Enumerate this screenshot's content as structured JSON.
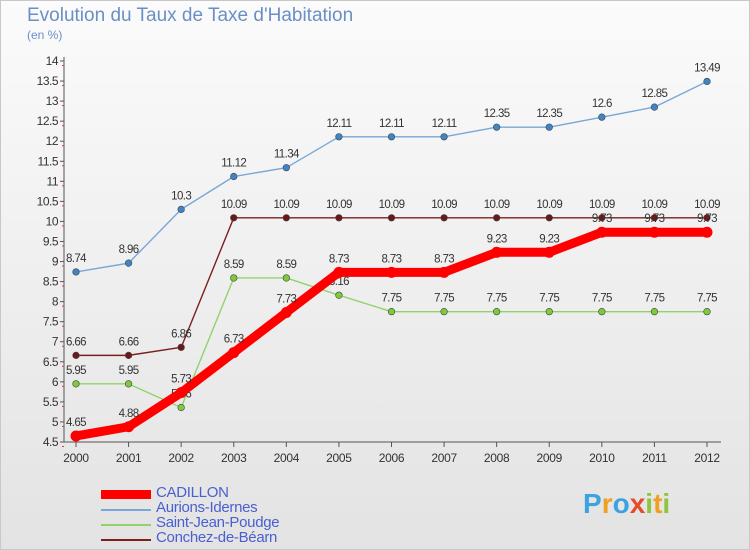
{
  "title": "Evolution du Taux de Taxe d'Habitation",
  "subtitle": "(en %)",
  "logo": {
    "text": "Proxiti",
    "letters": [
      {
        "ch": "P",
        "color": "#3da3e0"
      },
      {
        "ch": "r",
        "color": "#f0a020"
      },
      {
        "ch": "o",
        "color": "#3da3e0"
      },
      {
        "ch": "x",
        "color": "#e84a2a"
      },
      {
        "ch": "i",
        "color": "#8cc63f"
      },
      {
        "ch": "t",
        "color": "#f0a020"
      },
      {
        "ch": "i",
        "color": "#8cc63f"
      }
    ]
  },
  "chart_data": {
    "type": "line",
    "title": "Evolution du Taux de Taxe d'Habitation",
    "subtitle": "(en %)",
    "x": [
      "2000",
      "2001",
      "2002",
      "2003",
      "2004",
      "2005",
      "2006",
      "2007",
      "2008",
      "2009",
      "2010",
      "2011",
      "2012"
    ],
    "ylim": [
      4.5,
      14
    ],
    "yticks": [
      "4.5",
      "5",
      "5.5",
      "6",
      "6.5",
      "7",
      "7.5",
      "8",
      "8.5",
      "9",
      "9.5",
      "10",
      "10.5",
      "11",
      "11.5",
      "12",
      "12.5",
      "13",
      "13.5",
      "14"
    ],
    "grid": false,
    "legend_position": "bottom-left",
    "series": [
      {
        "name": "CADILLON",
        "color": "#ff0000",
        "marker": "#ff0000",
        "values": [
          4.65,
          4.88,
          5.73,
          6.73,
          7.73,
          8.73,
          8.73,
          8.73,
          9.23,
          9.23,
          9.73,
          9.73,
          9.73
        ],
        "labels": [
          "4.65",
          "4.88",
          "5.73",
          "6.73",
          "7.73",
          "8.73",
          "8.73",
          "8.73",
          "9.23",
          "9.23",
          "9.73",
          "9.73",
          "9.73"
        ]
      },
      {
        "name": "Aurions-Idernes",
        "color": "#7aa7d6",
        "marker": "#3d85c6",
        "values": [
          8.74,
          8.96,
          10.3,
          11.12,
          11.34,
          12.11,
          12.11,
          12.11,
          12.35,
          12.35,
          12.6,
          12.85,
          13.49
        ],
        "labels": [
          "8.74",
          "8.96",
          "10.3",
          "11.12",
          "11.34",
          "12.11",
          "12.11",
          "12.11",
          "12.35",
          "12.35",
          "12.6",
          "12.85",
          "13.49"
        ]
      },
      {
        "name": "Saint-Jean-Poudge",
        "color": "#8fd46a",
        "marker": "#7ccc3a",
        "values": [
          5.95,
          5.95,
          5.36,
          8.59,
          8.59,
          8.16,
          7.75,
          7.75,
          7.75,
          7.75,
          7.75,
          7.75,
          7.75
        ],
        "labels": [
          "5.95",
          "5.95",
          "5.36",
          "8.59",
          "8.59",
          "8.16",
          "7.75",
          "7.75",
          "7.75",
          "7.75",
          "7.75",
          "7.75",
          "7.75"
        ]
      },
      {
        "name": "Conchez-de-Béarn",
        "color": "#7a2020",
        "marker": "#6a1818",
        "values": [
          6.66,
          6.66,
          6.86,
          10.09,
          10.09,
          10.09,
          10.09,
          10.09,
          10.09,
          10.09,
          10.09,
          10.09,
          10.09
        ],
        "labels": [
          "6.66",
          "6.66",
          "6.86",
          "10.09",
          "10.09",
          "10.09",
          "10.09",
          "10.09",
          "10.09",
          "10.09",
          "10.09",
          "10.09",
          "10.09"
        ]
      }
    ]
  }
}
